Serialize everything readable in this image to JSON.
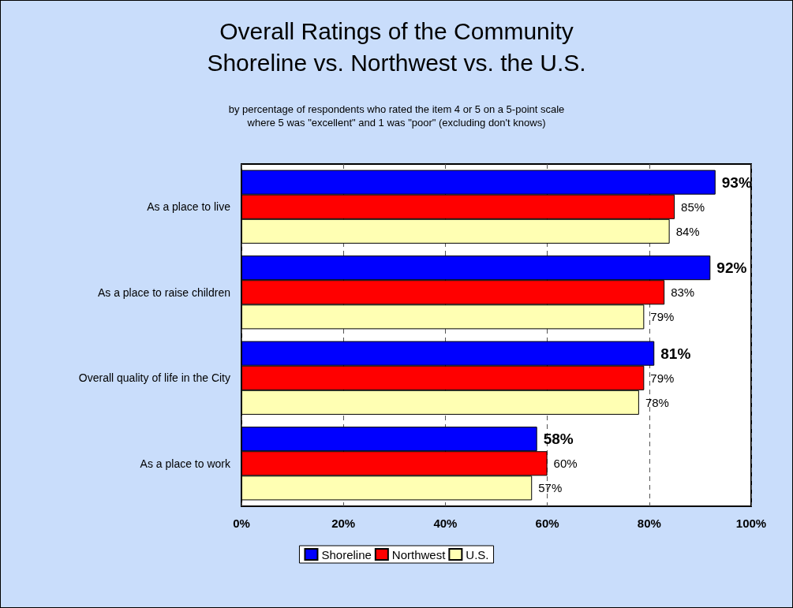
{
  "chart_data": {
    "type": "bar",
    "orientation": "horizontal",
    "title": "Overall Ratings of the Community",
    "subtitle": "Shoreline vs. Northwest vs. the U.S.",
    "annotations": [
      "by percentage of respondents who rated the item 4 or 5 on a 5-point scale\nwhere 5 was \"excellent\" and 1 was \"poor\" (excluding don't knows)"
    ],
    "categories": [
      "As a place to live",
      "As a place to raise children",
      "Overall quality of life in the City",
      "As a place to work"
    ],
    "series": [
      {
        "name": "Shoreline",
        "color": "#0000ff",
        "values": [
          93,
          92,
          81,
          58
        ],
        "value_labels": [
          "93%",
          "92%",
          "81%",
          "58%"
        ]
      },
      {
        "name": "Northwest",
        "color": "#ff0000",
        "values": [
          85,
          83,
          79,
          60
        ],
        "value_labels": [
          "85%",
          "83%",
          "79%",
          "60%"
        ]
      },
      {
        "name": "U.S.",
        "color": "#ffffb3",
        "values": [
          84,
          79,
          78,
          57
        ],
        "value_labels": [
          "84%",
          "79%",
          "78%",
          "57%"
        ]
      }
    ],
    "xlim": [
      0,
      100
    ],
    "xticks": [
      {
        "value": 0,
        "label": "0%"
      },
      {
        "value": 20,
        "label": "20%"
      },
      {
        "value": 40,
        "label": "40%"
      },
      {
        "value": 60,
        "label": "60%"
      },
      {
        "value": 80,
        "label": "80%"
      },
      {
        "value": 100,
        "label": "100%"
      }
    ],
    "grid": "x",
    "legend": "bottom"
  }
}
